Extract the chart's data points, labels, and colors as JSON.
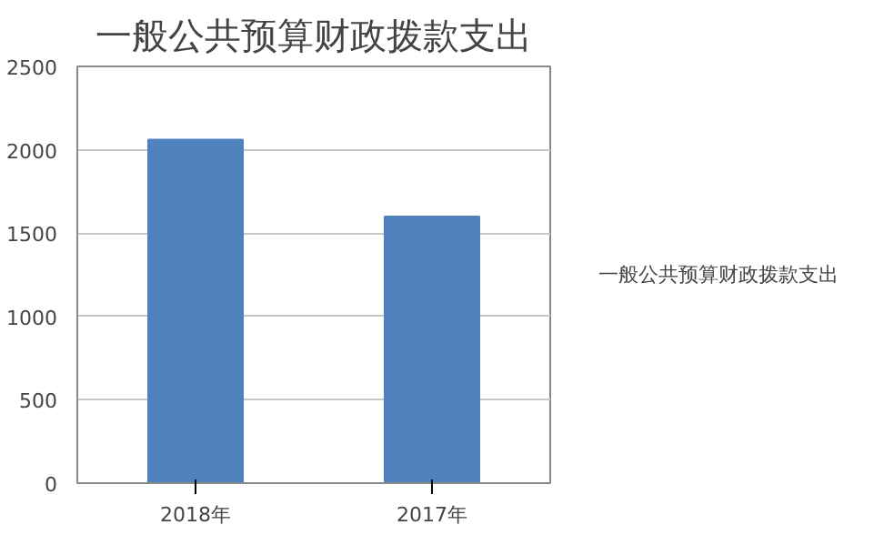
{
  "chart_data": {
    "type": "bar",
    "title": "一般公共预算财政拨款支出",
    "categories": [
      "2018年",
      "2017年"
    ],
    "series": [
      {
        "name": "一般公共预算财政拨款支出",
        "color": "#4f81bd",
        "values": [
          2060,
          1600
        ]
      }
    ],
    "ylim": [
      0,
      2500
    ],
    "yticks": [
      0,
      500,
      1000,
      1500,
      2000,
      2500
    ],
    "grid": "y",
    "legend": "right"
  }
}
